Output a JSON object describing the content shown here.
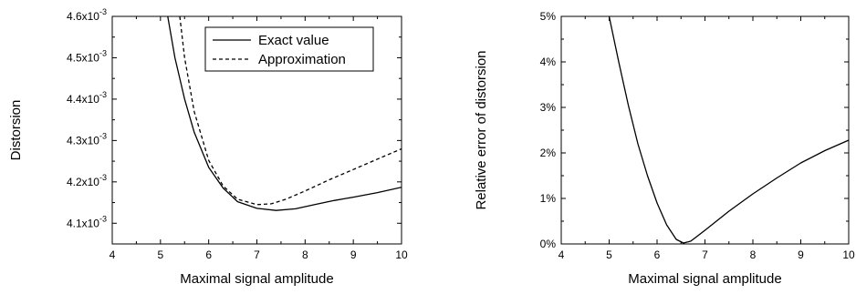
{
  "chart_data": [
    {
      "type": "line",
      "title": "",
      "xlabel": "Maximal signal amplitude",
      "ylabel": "Distorsion",
      "xlim": [
        4,
        10
      ],
      "ylim": [
        4.05,
        4.6
      ],
      "x_ticks": [
        {
          "value": 4,
          "label": "4"
        },
        {
          "value": 5,
          "label": "5"
        },
        {
          "value": 6,
          "label": "6"
        },
        {
          "value": 7,
          "label": "7"
        },
        {
          "value": 8,
          "label": "8"
        },
        {
          "value": 9,
          "label": "9"
        },
        {
          "value": 10,
          "label": "10"
        }
      ],
      "y_ticks": [
        {
          "value": 4.1,
          "base": "4.1x10",
          "exp": "-3"
        },
        {
          "value": 4.2,
          "base": "4.2x10",
          "exp": "-3"
        },
        {
          "value": 4.3,
          "base": "4.3x10",
          "exp": "-3"
        },
        {
          "value": 4.4,
          "base": "4.4x10",
          "exp": "-3"
        },
        {
          "value": 4.5,
          "base": "4.5x10",
          "exp": "-3"
        },
        {
          "value": 4.6,
          "base": "4.6x10",
          "exp": "-3"
        }
      ],
      "legend": {
        "placement": "top-right",
        "entries": [
          {
            "label": "Exact value",
            "style": "solid"
          },
          {
            "label": "Approximation",
            "style": "dashed"
          }
        ]
      },
      "series": [
        {
          "name": "Exact value",
          "style": "solid",
          "color": "#000000",
          "x": [
            5.15,
            5.3,
            5.5,
            5.7,
            6.0,
            6.3,
            6.6,
            7.0,
            7.4,
            7.8,
            8.2,
            8.6,
            9.0,
            9.5,
            10.0
          ],
          "y": [
            4.6,
            4.5,
            4.4,
            4.32,
            4.235,
            4.185,
            4.152,
            4.136,
            4.131,
            4.135,
            4.145,
            4.155,
            4.163,
            4.174,
            4.187
          ]
        },
        {
          "name": "Approximation",
          "style": "dashed",
          "color": "#000000",
          "x": [
            5.4,
            5.5,
            5.7,
            6.0,
            6.3,
            6.6,
            7.0,
            7.3,
            7.6,
            8.0,
            8.5,
            9.0,
            9.5,
            10.0
          ],
          "y": [
            4.6,
            4.5,
            4.37,
            4.252,
            4.19,
            4.158,
            4.145,
            4.147,
            4.158,
            4.178,
            4.205,
            4.23,
            4.255,
            4.28
          ]
        }
      ]
    },
    {
      "type": "line",
      "title": "",
      "xlabel": "Maximal signal amplitude",
      "ylabel": "Relative error of distorsion",
      "xlim": [
        4,
        10
      ],
      "ylim": [
        0,
        5
      ],
      "x_ticks": [
        {
          "value": 4,
          "label": "4"
        },
        {
          "value": 5,
          "label": "5"
        },
        {
          "value": 6,
          "label": "6"
        },
        {
          "value": 7,
          "label": "7"
        },
        {
          "value": 8,
          "label": "8"
        },
        {
          "value": 9,
          "label": "9"
        },
        {
          "value": 10,
          "label": "10"
        }
      ],
      "y_ticks": [
        {
          "value": 0,
          "label": "0%"
        },
        {
          "value": 1,
          "label": "1%"
        },
        {
          "value": 2,
          "label": "2%"
        },
        {
          "value": 3,
          "label": "3%"
        },
        {
          "value": 4,
          "label": "4%"
        },
        {
          "value": 5,
          "label": "5%"
        }
      ],
      "series": [
        {
          "style": "solid",
          "color": "#000000",
          "x": [
            5.0,
            5.2,
            5.4,
            5.6,
            5.8,
            6.0,
            6.2,
            6.4,
            6.55,
            6.7,
            7.0,
            7.5,
            8.0,
            8.5,
            9.0,
            9.5,
            10.0
          ],
          "y": [
            5.0,
            4.0,
            3.05,
            2.2,
            1.5,
            0.9,
            0.42,
            0.1,
            0.02,
            0.06,
            0.3,
            0.72,
            1.1,
            1.45,
            1.78,
            2.05,
            2.28
          ]
        }
      ]
    }
  ]
}
